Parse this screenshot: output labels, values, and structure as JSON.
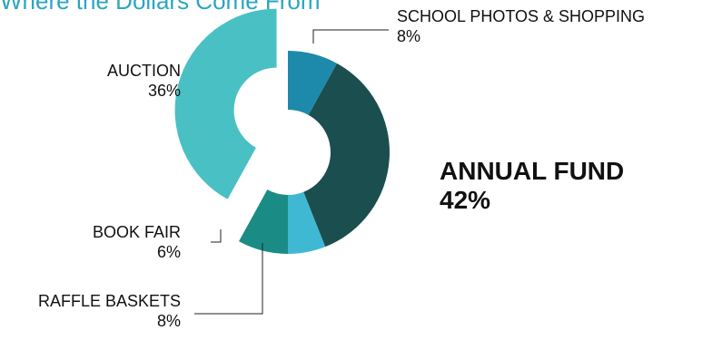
{
  "chart_data": {
    "type": "pie",
    "title": "Where the Dollars Come From",
    "slices": [
      {
        "label": "ANNUAL FUND",
        "value": 42,
        "value_label": "42%",
        "color": "#49c0c4",
        "exploded": true,
        "emphasis": true
      },
      {
        "label": "RAFFLE BASKETS",
        "value": 8,
        "value_label": "8%",
        "color": "#1a8b85",
        "exploded": false,
        "emphasis": false
      },
      {
        "label": "BOOK FAIR",
        "value": 6,
        "value_label": "6%",
        "color": "#3fb8d4",
        "exploded": false,
        "emphasis": false
      },
      {
        "label": "AUCTION",
        "value": 36,
        "value_label": "36%",
        "color": "#1b4e4f",
        "exploded": false,
        "emphasis": false
      },
      {
        "label": "SCHOOL PHOTOS & SHOPPING",
        "value": 8,
        "value_label": "8%",
        "color": "#1d8aab",
        "exploded": false,
        "emphasis": false
      }
    ]
  }
}
